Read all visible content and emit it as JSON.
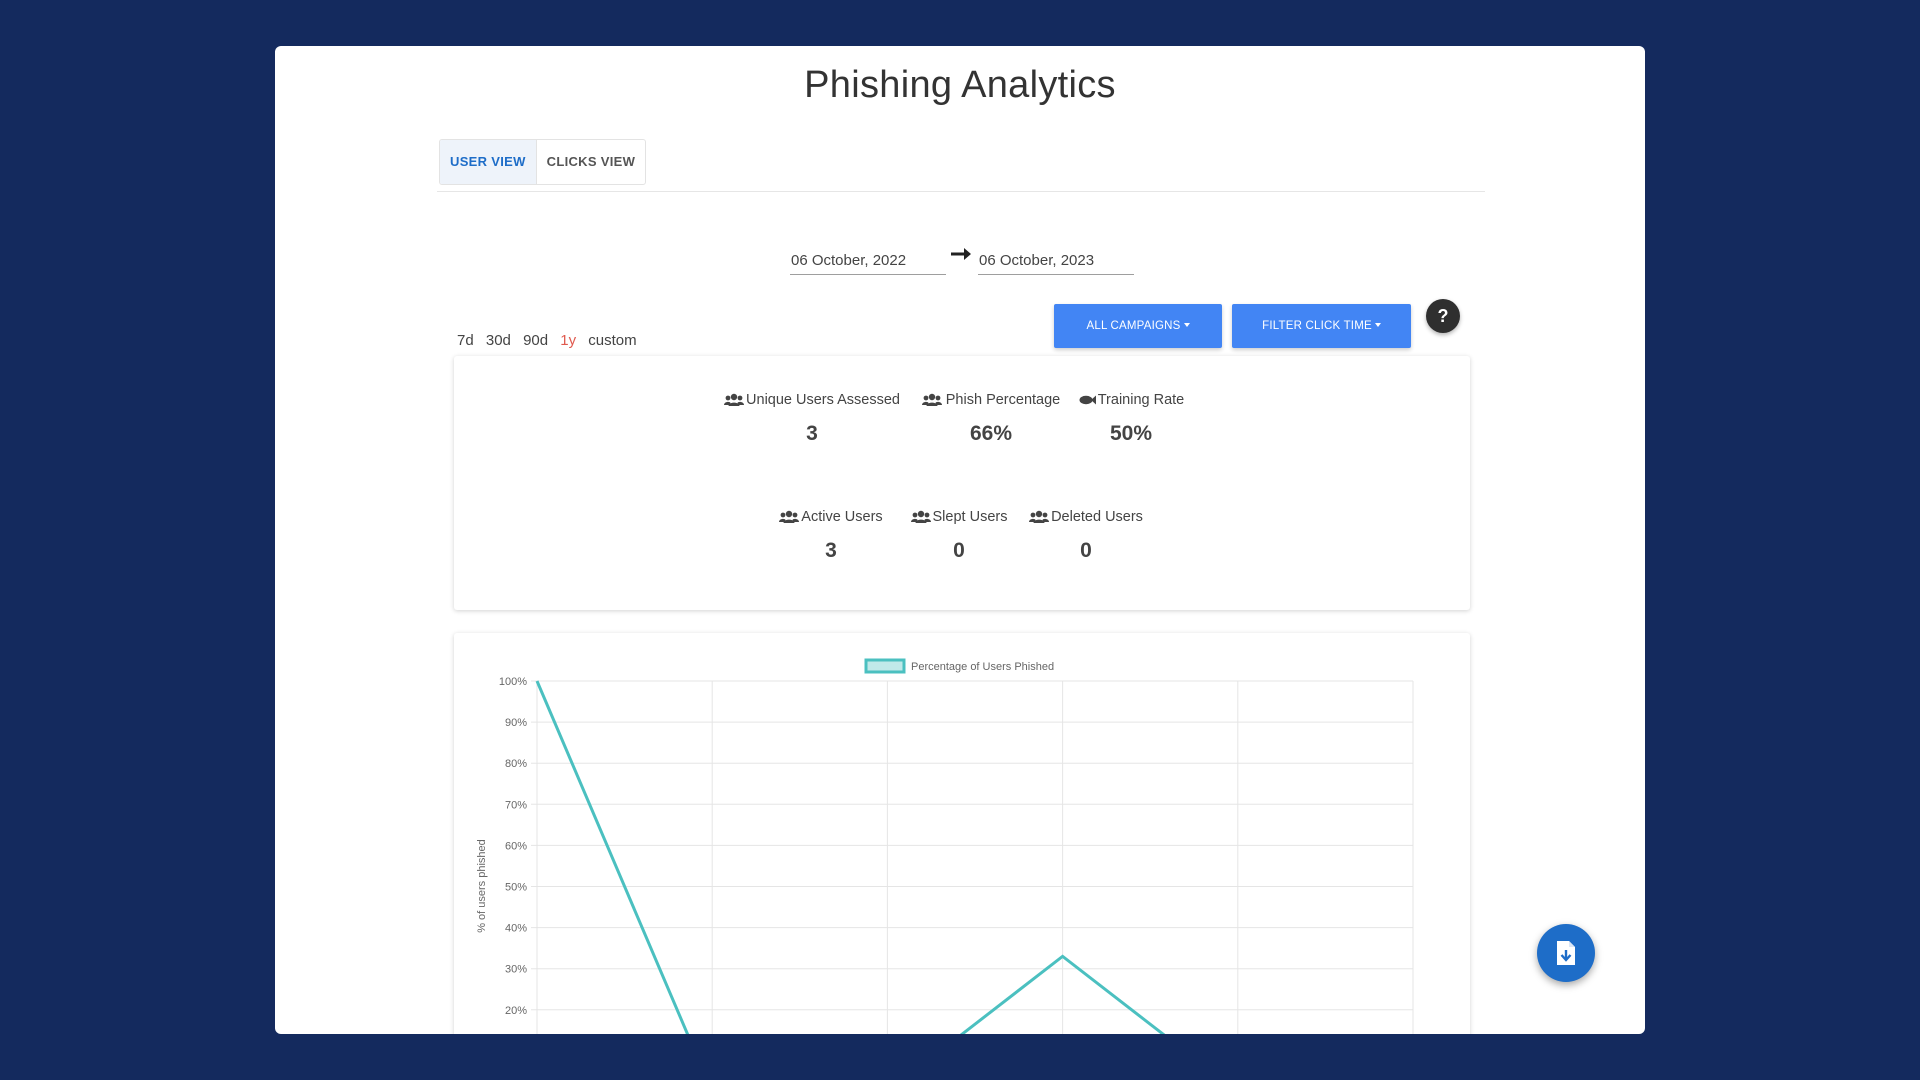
{
  "page": {
    "title": "Phishing Analytics"
  },
  "tabs": [
    {
      "label": "USER VIEW",
      "active": true
    },
    {
      "label": "CLICKS VIEW",
      "active": false
    }
  ],
  "date_range": {
    "start": "06 October, 2022",
    "end": "06 October, 2023"
  },
  "range_options": [
    {
      "label": "7d",
      "active": false
    },
    {
      "label": "30d",
      "active": false
    },
    {
      "label": "90d",
      "active": false
    },
    {
      "label": "1y",
      "active": true
    },
    {
      "label": "custom",
      "active": false
    }
  ],
  "filters": {
    "campaigns_label": "ALL CAMPAIGNS",
    "click_time_label": "FILTER CLICK TIME"
  },
  "help": {
    "label": "?"
  },
  "stats": {
    "unique_users": {
      "label": "Unique Users Assessed",
      "value": "3",
      "icon": "users-icon"
    },
    "phish_percentage": {
      "label": "Phish Percentage",
      "value": "66%",
      "icon": "users-icon"
    },
    "training_rate": {
      "label": "Training Rate",
      "value": "50%",
      "icon": "fish-icon"
    },
    "active_users": {
      "label": "Active Users",
      "value": "3",
      "icon": "users-icon"
    },
    "slept_users": {
      "label": "Slept Users",
      "value": "0",
      "icon": "users-icon"
    },
    "deleted_users": {
      "label": "Deleted Users",
      "value": "0",
      "icon": "users-icon"
    }
  },
  "chart_data": {
    "type": "line",
    "legend": [
      "Percentage of Users Phished"
    ],
    "ylabel": "% of users phished",
    "yticks": [
      "100%",
      "90%",
      "80%",
      "70%",
      "60%",
      "50%",
      "40%",
      "30%",
      "20%"
    ],
    "ylim": [
      0,
      100
    ],
    "grid": true,
    "series": [
      {
        "name": "Percentage of Users Phished",
        "values": [
          100,
          0,
          0,
          33,
          0,
          0
        ]
      }
    ],
    "color": "#4bc0c0"
  },
  "fab": {
    "icon": "file-download-icon"
  },
  "colors": {
    "background": "#142a5e",
    "primary": "#4285f4",
    "accent": "#1e6dc8",
    "active_range": "#e05a4f"
  }
}
